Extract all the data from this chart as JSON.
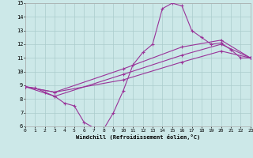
{
  "bg_color": "#cce8e8",
  "line_color": "#993399",
  "grid_color": "#aacccc",
  "xlim": [
    0,
    23
  ],
  "ylim": [
    6,
    15
  ],
  "xticks": [
    0,
    1,
    2,
    3,
    4,
    5,
    6,
    7,
    8,
    9,
    10,
    11,
    12,
    13,
    14,
    15,
    16,
    17,
    18,
    19,
    20,
    21,
    22,
    23
  ],
  "yticks": [
    6,
    7,
    8,
    9,
    10,
    11,
    12,
    13,
    14,
    15
  ],
  "xlabel": "Windchill (Refroidissement éolien,°C)",
  "series": [
    {
      "x": [
        0,
        1,
        2,
        3,
        4,
        5,
        6,
        7,
        8,
        9,
        10,
        11,
        12,
        13,
        14,
        15,
        16,
        17,
        18,
        19,
        20,
        21,
        22,
        23
      ],
      "y": [
        8.9,
        8.8,
        8.5,
        8.2,
        7.7,
        7.5,
        6.3,
        5.9,
        5.8,
        7.0,
        8.6,
        10.5,
        11.4,
        12.0,
        14.6,
        15.0,
        14.8,
        13.0,
        12.5,
        12.0,
        12.1,
        11.6,
        11.0,
        11.0
      ]
    },
    {
      "x": [
        0,
        3,
        10,
        16,
        20,
        23
      ],
      "y": [
        8.9,
        8.5,
        9.4,
        10.7,
        11.5,
        11.0
      ]
    },
    {
      "x": [
        0,
        3,
        10,
        16,
        20,
        23
      ],
      "y": [
        8.9,
        8.2,
        9.8,
        11.2,
        12.0,
        11.0
      ]
    },
    {
      "x": [
        0,
        3,
        10,
        16,
        20,
        23
      ],
      "y": [
        8.9,
        8.5,
        10.2,
        11.8,
        12.3,
        11.0
      ]
    }
  ]
}
